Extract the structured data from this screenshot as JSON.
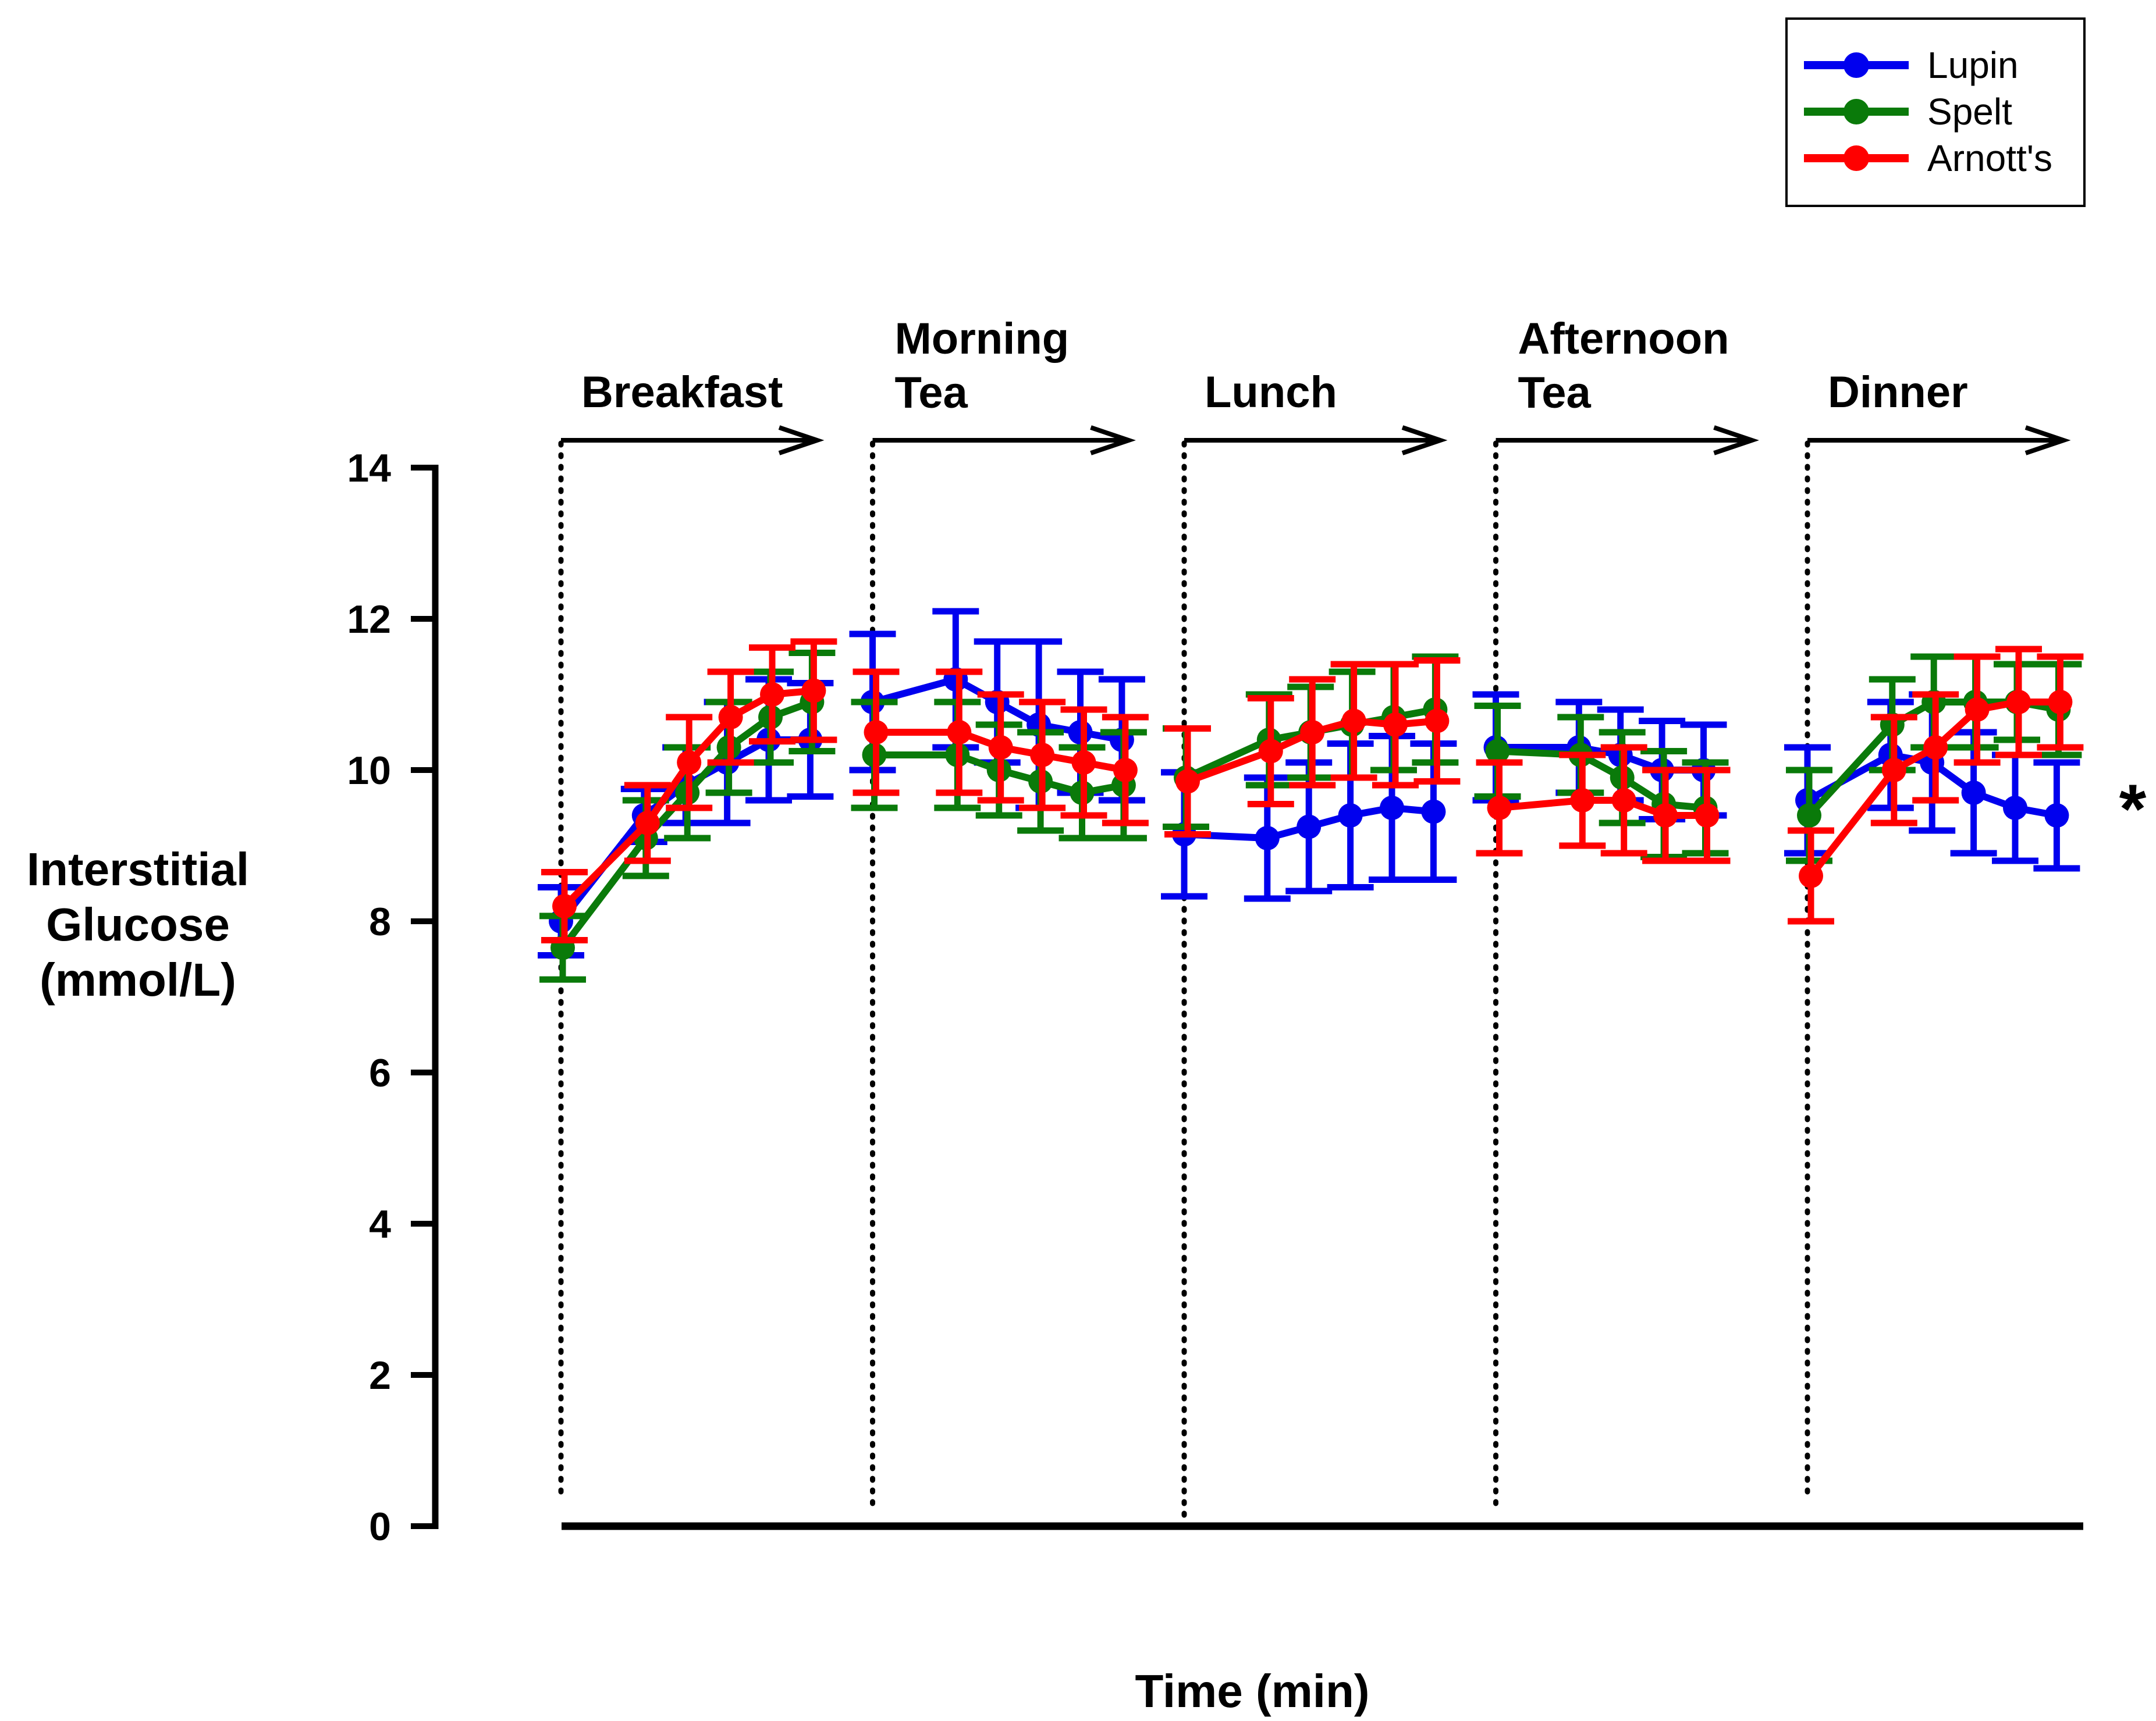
{
  "chart_data": {
    "type": "line",
    "title": "",
    "xlabel": "Time (min)",
    "ylabel": [
      "Interstitial",
      "Glucose",
      "(mmol/L)"
    ],
    "ylim": [
      0,
      14
    ],
    "yticks": [
      "0",
      "2",
      "4",
      "6",
      "8",
      "10",
      "12",
      "14"
    ],
    "grid": false,
    "legend_position": "top-right",
    "significance_marker": "*",
    "meals": [
      {
        "lines": [
          "Breakfast"
        ],
        "start": 0
      },
      {
        "lines": [
          "Morning",
          "Tea"
        ],
        "start": 7.5
      },
      {
        "lines": [
          "Lunch"
        ],
        "start": 15
      },
      {
        "lines": [
          "Afternoon",
          "Tea"
        ],
        "start": 22.5
      },
      {
        "lines": [
          "Dinner"
        ],
        "start": 30
      }
    ],
    "series": [
      {
        "name": "Lupin",
        "color": "#0000ee",
        "segments": [
          {
            "x": [
              0,
              2,
              3,
              4,
              5,
              6
            ],
            "y": [
              8.0,
              9.4,
              9.8,
              10.1,
              10.4,
              10.4
            ],
            "err": [
              0.45,
              0.35,
              0.5,
              0.8,
              0.8,
              0.75
            ]
          },
          {
            "x": [
              7.5,
              9.5,
              10.5,
              11.5,
              12.5,
              13.5
            ],
            "y": [
              10.9,
              11.2,
              10.9,
              10.6,
              10.5,
              10.4
            ],
            "err": [
              0.9,
              0.9,
              0.8,
              1.1,
              0.8,
              0.8
            ]
          },
          {
            "x": [
              15,
              17,
              18,
              19,
              20,
              21
            ],
            "y": [
              9.15,
              9.1,
              9.25,
              9.4,
              9.5,
              9.45
            ],
            "err": [
              0.82,
              0.8,
              0.85,
              0.95,
              0.95,
              0.9
            ]
          },
          {
            "x": [
              22.5,
              24.5,
              25.5,
              26.5,
              27.5
            ],
            "y": [
              10.3,
              10.3,
              10.2,
              10.0,
              10.0
            ],
            "err": [
              0.7,
              0.6,
              0.6,
              0.65,
              0.6
            ]
          },
          {
            "x": [
              30,
              32,
              33,
              34,
              35,
              36
            ],
            "y": [
              9.6,
              10.2,
              10.1,
              9.7,
              9.5,
              9.4
            ],
            "err": [
              0.7,
              0.7,
              0.9,
              0.8,
              0.7,
              0.7
            ]
          }
        ]
      },
      {
        "name": "Spelt",
        "color": "#0a7a0a",
        "segments": [
          {
            "x": [
              0,
              2,
              3,
              4,
              5,
              6
            ],
            "y": [
              7.65,
              9.1,
              9.7,
              10.3,
              10.7,
              10.9
            ],
            "err": [
              0.42,
              0.5,
              0.6,
              0.6,
              0.6,
              0.65
            ]
          },
          {
            "x": [
              7.5,
              9.5,
              10.5,
              11.5,
              12.5,
              13.5
            ],
            "y": [
              10.2,
              10.2,
              10.0,
              9.85,
              9.7,
              9.8
            ],
            "err": [
              0.7,
              0.7,
              0.6,
              0.65,
              0.6,
              0.7
            ]
          },
          {
            "x": [
              15,
              17,
              18,
              19,
              20,
              21
            ],
            "y": [
              9.9,
              10.4,
              10.5,
              10.6,
              10.7,
              10.8
            ],
            "err": [
              0.65,
              0.6,
              0.6,
              0.7,
              0.7,
              0.7
            ]
          },
          {
            "x": [
              22.5,
              24.5,
              25.5,
              26.5,
              27.5
            ],
            "y": [
              10.25,
              10.2,
              9.9,
              9.55,
              9.5
            ],
            "err": [
              0.6,
              0.5,
              0.6,
              0.7,
              0.6
            ]
          },
          {
            "x": [
              30,
              32,
              33,
              34,
              35,
              36
            ],
            "y": [
              9.4,
              10.6,
              10.9,
              10.9,
              10.9,
              10.8
            ],
            "err": [
              0.6,
              0.6,
              0.6,
              0.6,
              0.5,
              0.6
            ]
          }
        ]
      },
      {
        "name": "Arnott's",
        "color": "#ff0000",
        "segments": [
          {
            "x": [
              0,
              2,
              3,
              4,
              5,
              6
            ],
            "y": [
              8.2,
              9.3,
              10.1,
              10.7,
              11.0,
              11.05
            ],
            "err": [
              0.45,
              0.5,
              0.6,
              0.6,
              0.62,
              0.65
            ]
          },
          {
            "x": [
              7.5,
              9.5,
              10.5,
              11.5,
              12.5,
              13.5
            ],
            "y": [
              10.5,
              10.5,
              10.3,
              10.2,
              10.1,
              10.0
            ],
            "err": [
              0.8,
              0.8,
              0.7,
              0.7,
              0.7,
              0.7
            ]
          },
          {
            "x": [
              15,
              17,
              18,
              19,
              20,
              21
            ],
            "y": [
              9.85,
              10.25,
              10.5,
              10.65,
              10.6,
              10.65
            ],
            "err": [
              0.7,
              0.7,
              0.7,
              0.75,
              0.8,
              0.8
            ]
          },
          {
            "x": [
              22.5,
              24.5,
              25.5,
              26.5,
              27.5
            ],
            "y": [
              9.5,
              9.6,
              9.6,
              9.4,
              9.4
            ],
            "err": [
              0.6,
              0.6,
              0.7,
              0.6,
              0.6
            ]
          },
          {
            "x": [
              30,
              32,
              33,
              34,
              35,
              36
            ],
            "y": [
              8.6,
              10.0,
              10.3,
              10.8,
              10.9,
              10.9
            ],
            "err": [
              0.6,
              0.7,
              0.7,
              0.7,
              0.7,
              0.6
            ]
          }
        ]
      }
    ]
  }
}
